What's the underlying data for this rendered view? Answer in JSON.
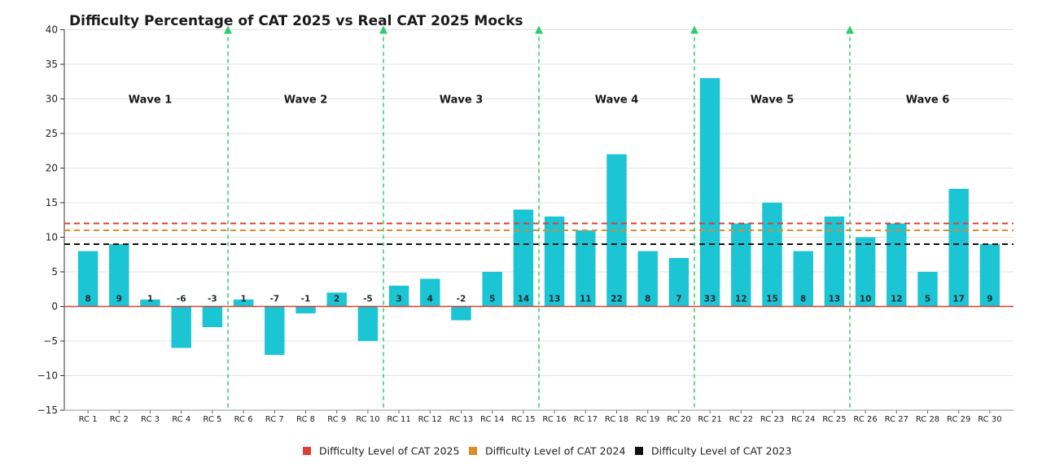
{
  "chart_data": {
    "type": "bar",
    "title": "Difficulty Percentage of CAT 2025 vs Real CAT 2025 Mocks",
    "xlabel": "",
    "ylabel": "",
    "ylim": [
      -15,
      40
    ],
    "yticks": [
      -15,
      -10,
      -5,
      0,
      5,
      10,
      15,
      20,
      25,
      30,
      35,
      40
    ],
    "ytick_labels": [
      "−15",
      "−10",
      "−5",
      "0",
      "5",
      "10",
      "15",
      "20",
      "25",
      "30",
      "35",
      "40"
    ],
    "grid": true,
    "categories": [
      "RC 1",
      "RC 2",
      "RC 3",
      "RC 4",
      "RC 5",
      "RC 6",
      "RC 7",
      "RC 8",
      "RC 9",
      "RC 10",
      "RC 11",
      "RC 12",
      "RC 13",
      "RC 14",
      "RC 15",
      "RC 16",
      "RC 17",
      "RC 18",
      "RC 19",
      "RC 20",
      "RC 21",
      "RC 22",
      "RC 23",
      "RC 24",
      "RC 25",
      "RC 26",
      "RC 27",
      "RC 28",
      "RC 29",
      "RC 30"
    ],
    "values": [
      8,
      9,
      1,
      -6,
      -3,
      1,
      -7,
      -1,
      2,
      -5,
      3,
      4,
      -2,
      5,
      14,
      13,
      11,
      22,
      8,
      7,
      33,
      12,
      15,
      8,
      13,
      10,
      12,
      5,
      17,
      9
    ],
    "bar_color": "#1cc5d3",
    "reference_lines": [
      {
        "name": "Difficulty Level of CAT 2025",
        "value": 12,
        "color": "#e03c31"
      },
      {
        "name": "Difficulty Level of CAT 2024",
        "value": 11,
        "color": "#e08a28"
      },
      {
        "name": "Difficulty Level of CAT 2023",
        "value": 9,
        "color": "#111111"
      }
    ],
    "zero_line_color": "#e03c31",
    "wave_divider_color": "#2ecc71",
    "wave_dividers_after": [
      5,
      10,
      15,
      20,
      25
    ],
    "waves": [
      {
        "label": "Wave 1",
        "start": 1,
        "end": 5
      },
      {
        "label": "Wave 2",
        "start": 6,
        "end": 10
      },
      {
        "label": "Wave 3",
        "start": 11,
        "end": 15
      },
      {
        "label": "Wave 4",
        "start": 16,
        "end": 20
      },
      {
        "label": "Wave 5",
        "start": 21,
        "end": 25
      },
      {
        "label": "Wave 6",
        "start": 26,
        "end": 30
      }
    ],
    "wave_label_value": 30,
    "legend_position": "bottom-center"
  }
}
